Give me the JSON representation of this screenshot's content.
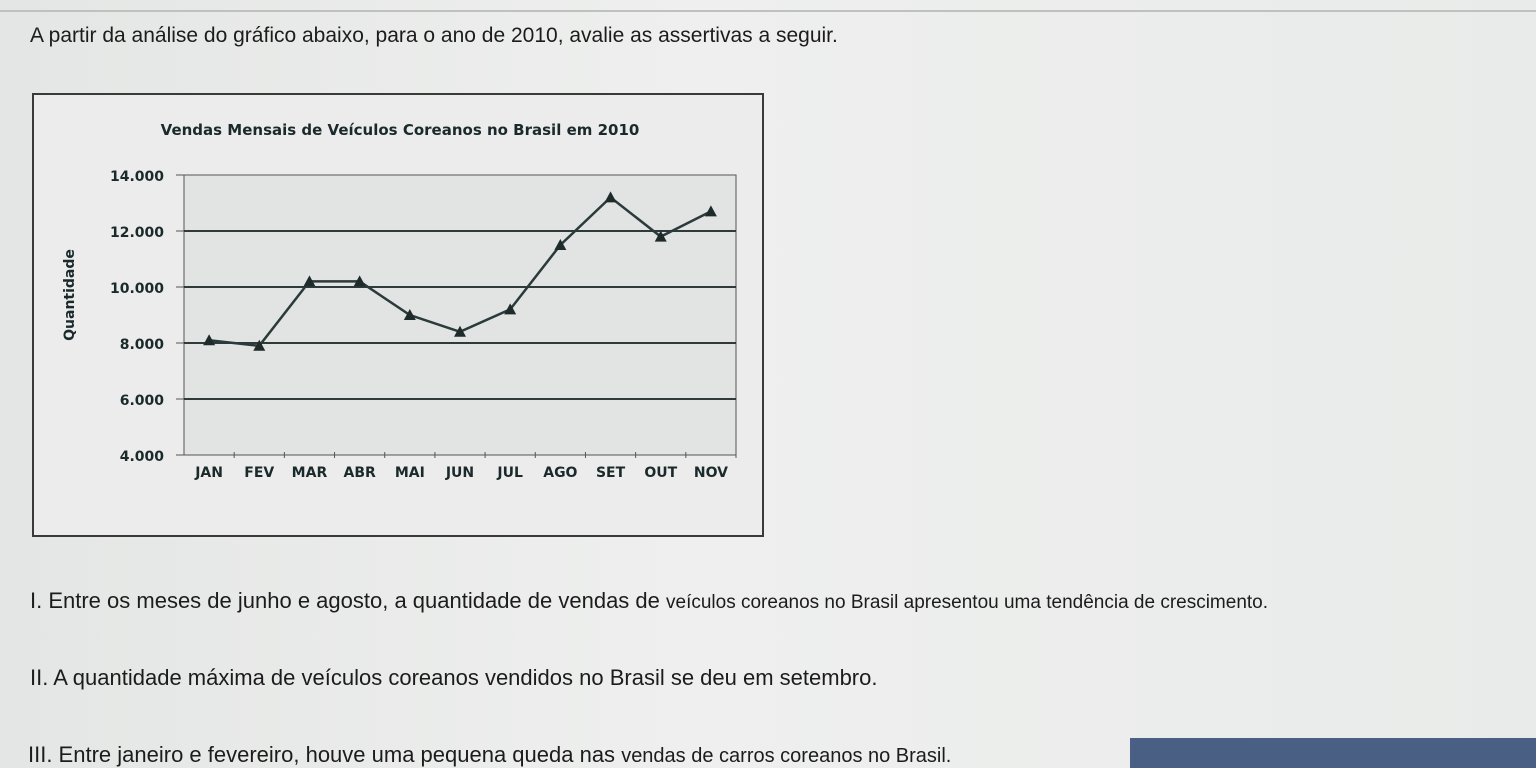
{
  "question": {
    "intro": "A partir da análise do gráfico abaixo, para o ano de 2010, avalie as assertivas a seguir.",
    "statements": [
      {
        "lead": "I. Entre os meses de junho e agosto, a quantidade de vendas de ",
        "tail": "veículos coreanos no Brasil apresentou uma tendência de crescimento."
      },
      {
        "lead": "",
        "tail": "II. A quantidade máxima de veículos coreanos vendidos no Brasil se deu em setembro."
      },
      {
        "lead": "",
        "tail": "II. A quantidade máxima de veículos coreanos vendidos no Brasil se deu em setembro."
      },
      {
        "lead": "III. Entre janeiro e fevereiro, houve uma pequena queda nas ",
        "tail": "vendas de carros coreanos no Brasil."
      }
    ]
  },
  "chart_data": {
    "type": "line",
    "title": "Vendas Mensais de Veículos Coreanos no Brasil em 2010",
    "ylabel": "Quantidade",
    "xlabel": "",
    "categories": [
      "JAN",
      "FEV",
      "MAR",
      "ABR",
      "MAI",
      "JUN",
      "JUL",
      "AGO",
      "SET",
      "OUT",
      "NOV"
    ],
    "values": [
      8100,
      7900,
      10200,
      10200,
      9000,
      8400,
      9200,
      11500,
      13200,
      11800,
      12700
    ],
    "ylim": [
      4000,
      14000
    ],
    "yticks": [
      4000,
      6000,
      8000,
      10000,
      12000,
      14000
    ],
    "ytick_labels": [
      "4.000",
      "6.000",
      "8.000",
      "10.000",
      "12.000",
      "14.000"
    ],
    "grid": true,
    "line_color": "#2b3a3a"
  }
}
